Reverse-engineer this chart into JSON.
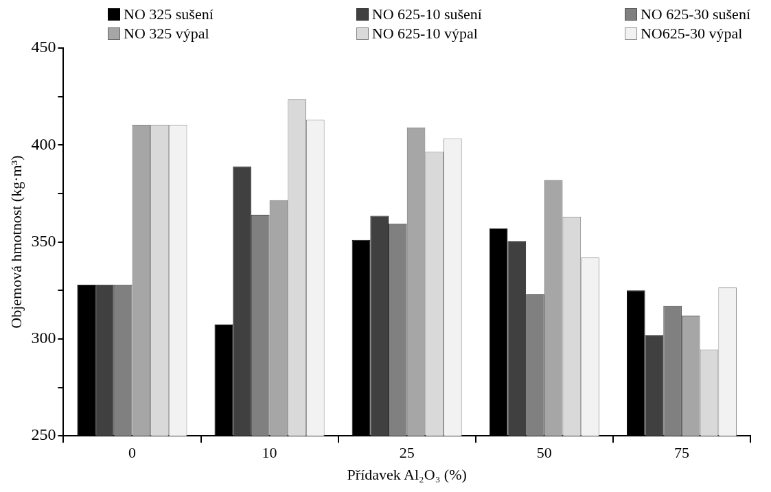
{
  "chart_data": {
    "type": "bar",
    "xlabel": "Přídavek Al₂O₃ (%)",
    "ylabel": "Objemová hmotnost (kg·m³)",
    "categories": [
      "0",
      "10",
      "25",
      "50",
      "75"
    ],
    "series": [
      {
        "name": "NO 325 sušení",
        "color": "#000000",
        "values": [
          328,
          307.5,
          351,
          357,
          325
        ]
      },
      {
        "name": "NO 625-10 sušení",
        "color": "#404040",
        "values": [
          328,
          389,
          363.5,
          350.5,
          302
        ]
      },
      {
        "name": "NO 625-30 sušení",
        "color": "#808080",
        "values": [
          328,
          364,
          359.5,
          323,
          317
        ]
      },
      {
        "name": "NO 325 výpal",
        "color": "#a6a6a6",
        "values": [
          410.5,
          371.5,
          409,
          382,
          312
        ]
      },
      {
        "name": "NO 625-10 výpal",
        "color": "#d9d9d9",
        "values": [
          410.5,
          423.5,
          396.5,
          363,
          294.5
        ]
      },
      {
        "name": "NO625-30 výpal",
        "color": "#f2f2f2",
        "values": [
          410.5,
          413,
          403.5,
          342,
          326.5
        ]
      }
    ],
    "ylim": [
      250,
      450
    ],
    "yticks": [
      250,
      {
        "value": 275,
        "label": null
      },
      300,
      {
        "value": 325,
        "label": null
      },
      350,
      {
        "value": 375,
        "label": null
      },
      400,
      {
        "value": 425,
        "label": null
      },
      450
    ],
    "grid": false,
    "legend": "top"
  }
}
